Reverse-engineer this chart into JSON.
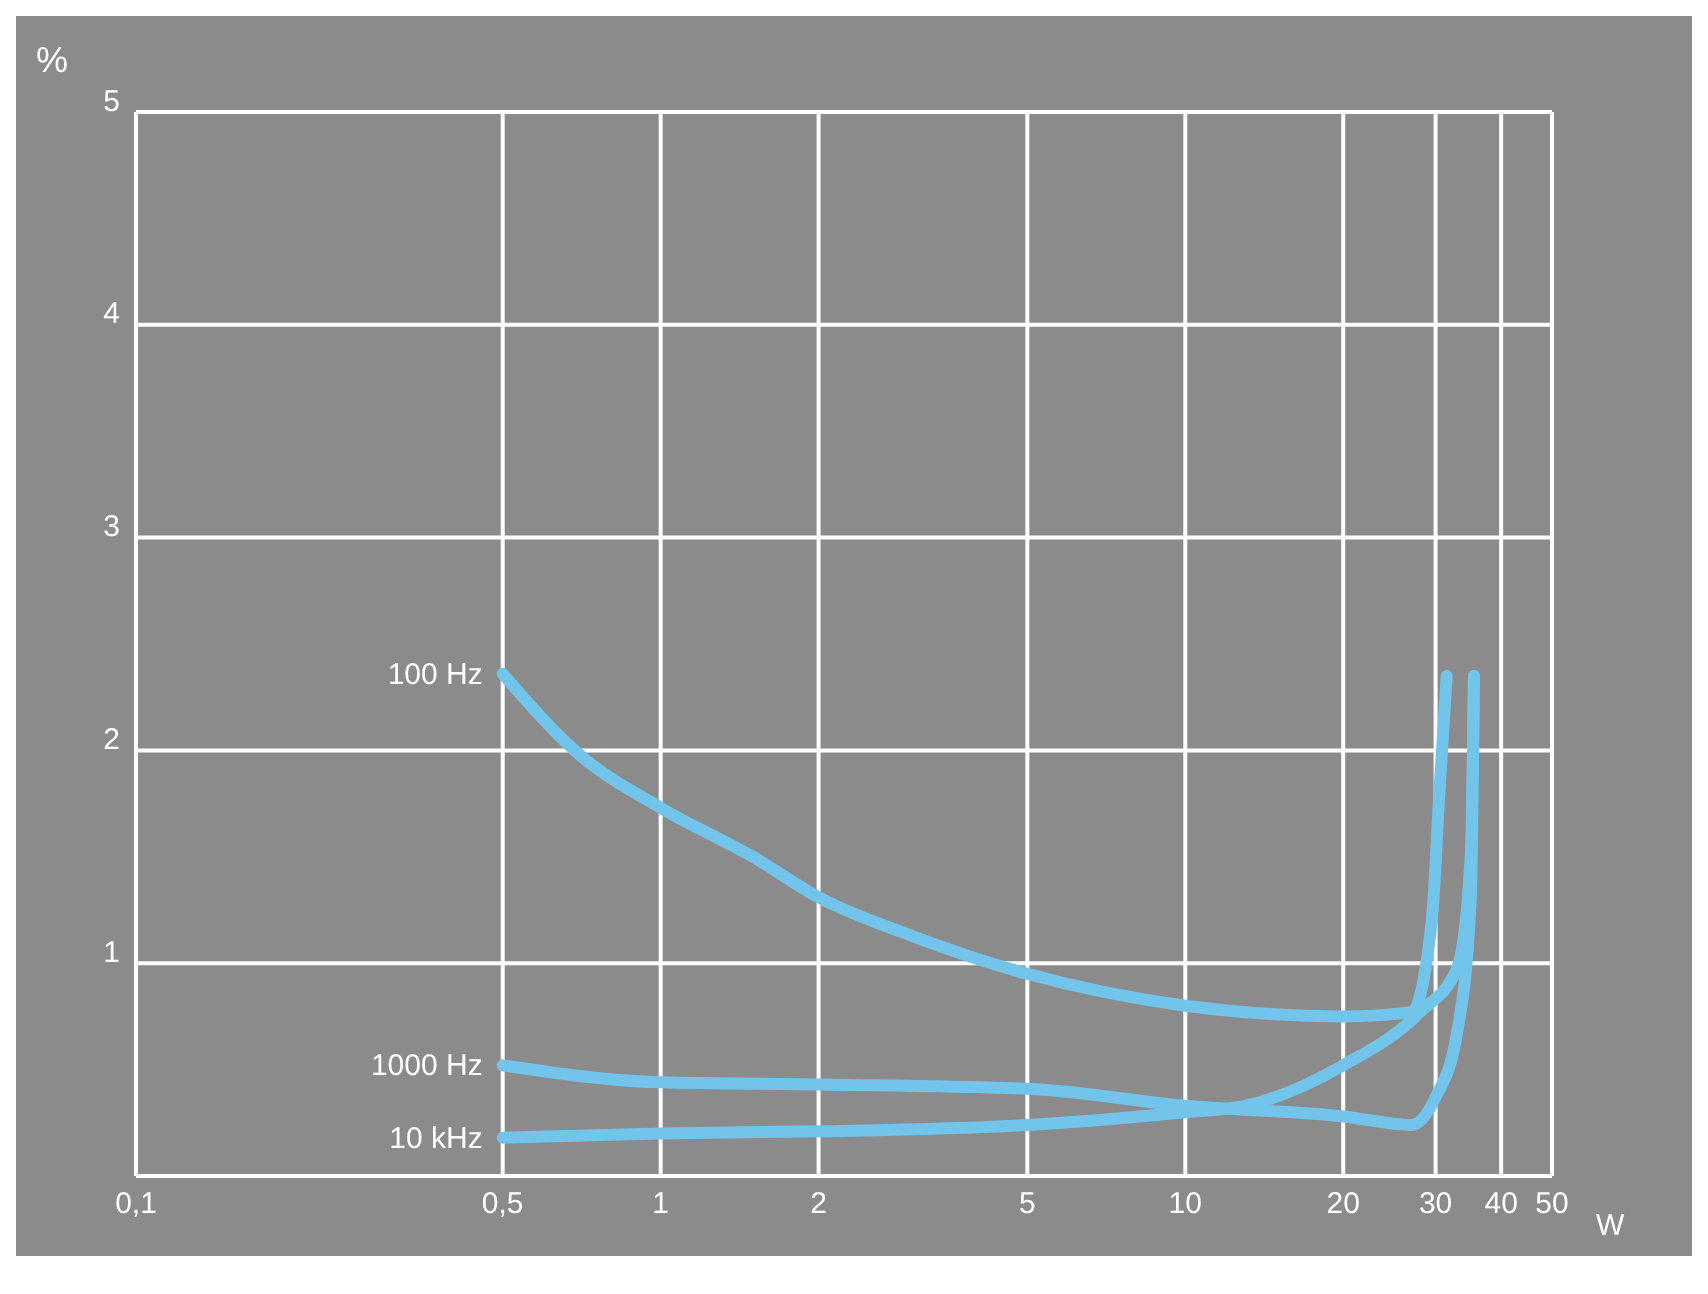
{
  "chart_data": {
    "type": "line",
    "xlabel": "W",
    "ylabel": "%",
    "xlim": [
      0.1,
      50
    ],
    "xticks": [
      {
        "value": 0.1,
        "label": "0,1"
      },
      {
        "value": 0.5,
        "label": "0,5"
      },
      1,
      2,
      5,
      10,
      20,
      30,
      40,
      50
    ],
    "ylim": [
      0,
      5
    ],
    "yticks": [
      {
        "value": 0,
        "label": null
      },
      1,
      2,
      3,
      4,
      5
    ],
    "log": "x",
    "grid": true,
    "legend": false,
    "marker": "none",
    "line_style": "solid",
    "series": [
      {
        "name": "100 Hz",
        "color": "#72c4ea",
        "x": [
          0.5,
          0.7,
          1,
          1.5,
          2,
          3,
          5,
          10,
          20,
          27,
          29.5,
          30.5,
          31.5
        ],
        "values": [
          2.36,
          1.98,
          1.73,
          1.5,
          1.31,
          1.13,
          0.95,
          0.8,
          0.75,
          0.77,
          1.2,
          1.8,
          2.35
        ]
      },
      {
        "name": "1000 Hz",
        "color": "#72c4ea",
        "x": [
          0.5,
          1,
          2,
          5,
          10,
          20,
          27,
          30,
          33,
          35,
          35.5
        ],
        "values": [
          0.52,
          0.44,
          0.43,
          0.41,
          0.33,
          0.28,
          0.24,
          0.37,
          0.68,
          1.3,
          2.35
        ]
      },
      {
        "name": "10 kHz",
        "color": "#72c4ea",
        "x": [
          0.5,
          1,
          2,
          5,
          10,
          13,
          20,
          28,
          33,
          35,
          35.5
        ],
        "values": [
          0.18,
          0.2,
          0.21,
          0.24,
          0.3,
          0.33,
          0.52,
          0.77,
          0.98,
          1.5,
          2.35
        ]
      }
    ]
  }
}
